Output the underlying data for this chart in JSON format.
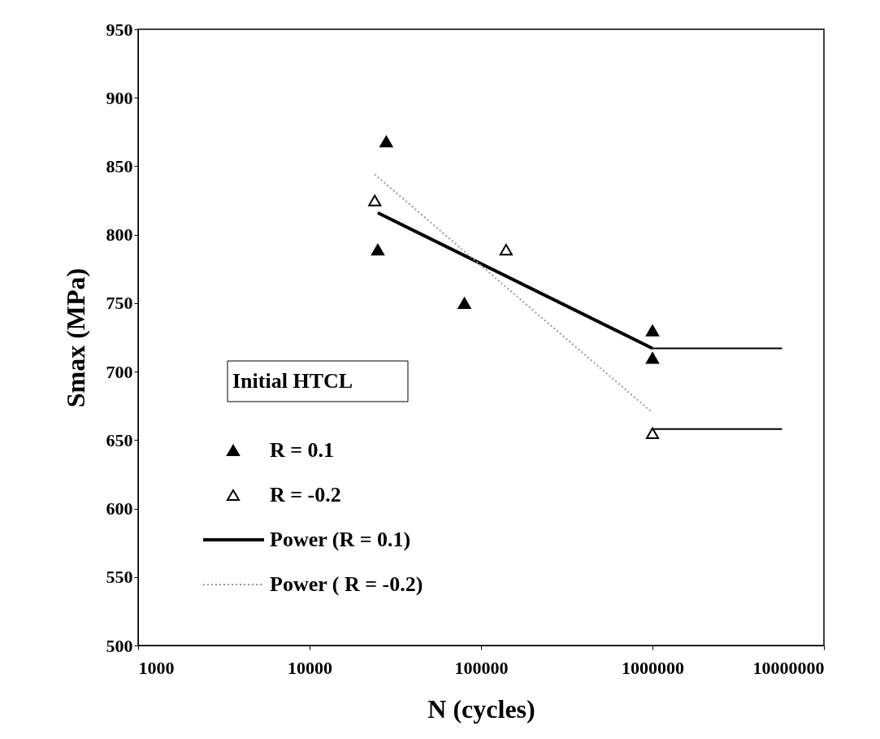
{
  "chart_data": {
    "type": "scatter",
    "xlabel": "N (cycles)",
    "ylabel": "Smax (MPa)",
    "legend_title": "Initial HTCL",
    "legend": "bottom left",
    "log": "x",
    "grid": false,
    "xlim": [
      1000,
      10000000
    ],
    "xticks": [
      1000,
      10000,
      100000,
      1000000,
      10000000
    ],
    "ylim": [
      500,
      950
    ],
    "yticks": [
      500,
      550,
      600,
      650,
      700,
      750,
      800,
      850,
      900,
      950
    ],
    "series": [
      {
        "name": "R = 0.1",
        "marker": "triangle",
        "color": "#000000",
        "x": [
          28000,
          25000,
          80000,
          1000000,
          1000000
        ],
        "values": [
          868,
          789,
          750,
          730,
          710
        ]
      },
      {
        "name": "R = -0.2",
        "marker": "triangle",
        "color": "#ffffff",
        "x": [
          24000,
          140000,
          1000000
        ],
        "values": [
          825,
          789,
          655
        ]
      },
      {
        "name": "Power (R = 0.1)",
        "type": "line",
        "line_style": "solid",
        "color": "#000000",
        "x": [
          25000,
          1000000
        ],
        "values": [
          816,
          717
        ]
      },
      {
        "name": "Power ( R = -0.2)",
        "type": "line",
        "line_style": "dotted",
        "color": "#999999",
        "x": [
          24000,
          1000000
        ],
        "values": [
          844,
          670
        ]
      },
      {
        "type": "line",
        "line_style": "solid",
        "color": "#000000",
        "x": [
          1000000,
          5700000
        ],
        "values": [
          717,
          717
        ]
      },
      {
        "type": "line",
        "line_style": "solid",
        "color": "#000000",
        "x": [
          1000000,
          5700000
        ],
        "values": [
          658,
          658
        ]
      }
    ]
  }
}
